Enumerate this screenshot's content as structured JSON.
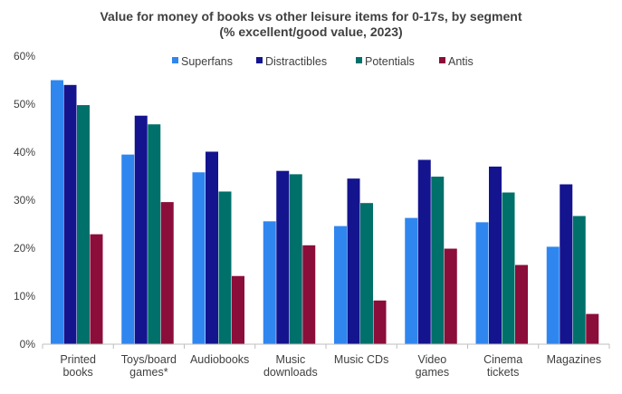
{
  "title_lines": [
    "Value for money of books vs other leisure items for 0-17s, by segment",
    "(% excellent/good value, 2023)"
  ],
  "chart_data": {
    "type": "bar",
    "title": "Value for money of books vs other leisure items for 0-17s, by segment (% excellent/good value, 2023)",
    "xlabel": "",
    "ylabel": "",
    "ylim": [
      0,
      60
    ],
    "yticks": [
      "0%",
      "10%",
      "20%",
      "30%",
      "40%",
      "50%",
      "60%"
    ],
    "grid": false,
    "legend_position": "top",
    "categories": [
      [
        "Printed",
        "books"
      ],
      [
        "Toys/board",
        "games*"
      ],
      [
        "Audiobooks"
      ],
      [
        "Music",
        "downloads"
      ],
      [
        "Music CDs"
      ],
      [
        "Video",
        "games"
      ],
      [
        "Cinema",
        "tickets"
      ],
      [
        "Magazines"
      ]
    ],
    "series": [
      {
        "name": "Superfans",
        "color": "#2f86ef",
        "values": [
          55,
          39.5,
          35.8,
          25.6,
          24.6,
          26.3,
          25.4,
          20.3
        ]
      },
      {
        "name": "Distractibles",
        "color": "#14148f",
        "values": [
          54,
          47.6,
          40.1,
          36.1,
          34.5,
          38.4,
          37,
          33.3
        ]
      },
      {
        "name": "Potentials",
        "color": "#00706a",
        "values": [
          49.8,
          45.8,
          31.8,
          35.4,
          29.4,
          34.9,
          31.6,
          26.7
        ]
      },
      {
        "name": "Antis",
        "color": "#8b0d3a",
        "values": [
          22.9,
          29.6,
          14.2,
          20.6,
          9.1,
          19.9,
          16.5,
          6.3
        ]
      }
    ]
  }
}
